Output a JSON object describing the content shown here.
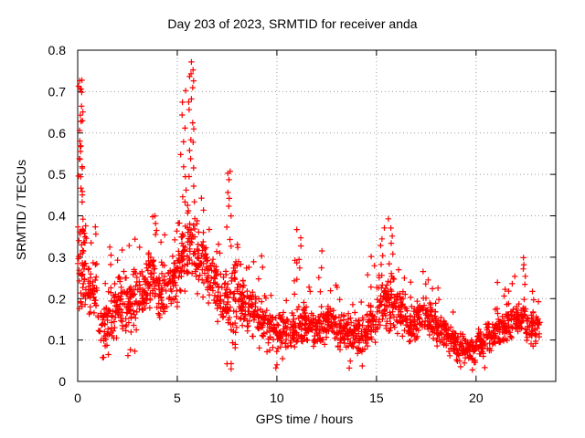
{
  "title": "Day 203 of 2023, SRMTID for receiver anda",
  "colors": {
    "marker": "#ff0000",
    "grid": "#9c9c9c",
    "border": "#000000",
    "background": "#ffffff",
    "text": "#000000"
  },
  "chart_data": {
    "type": "scatter",
    "title": "Day 203 of 2023, SRMTID for receiver anda",
    "xlabel": "GPS time / hours",
    "ylabel": "SRMTID / TECUs",
    "xlim": [
      0,
      24
    ],
    "ylim": [
      0,
      0.8
    ],
    "xticks": [
      0,
      5,
      10,
      15,
      20
    ],
    "xtick_labels": [
      "0",
      "5",
      "10",
      "15",
      "20"
    ],
    "yticks": [
      0,
      0.1,
      0.2,
      0.3,
      0.4,
      0.5,
      0.6,
      0.7,
      0.8
    ],
    "ytick_labels": [
      "0",
      "0.1",
      "0.2",
      "0.3",
      "0.4",
      "0.5",
      "0.6",
      "0.7",
      "0.8"
    ],
    "grid": true,
    "legend": "none",
    "marker": "plus",
    "series_color": "#ff0000",
    "summary": "Dense red plus-marker scatter of SRMTID vs GPS time. Baseline band ~0.05-0.2 TECUs all day; strong activity 0-0.5h (spikes to 0.73), 5-6h (max 0.77), 7.5h (to 0.51), 11h and 12h (to ~0.37 and ~0.31), 15-16h (to ~0.39), quiet minimum near 19-20h (~0.03-0.1), final spike ~0.30 near 22.5h; data ends ~23.2h.",
    "seed": 7,
    "bin_format": "x=bin start hour, w=bin width hours, n=core point count, lo/hi=core TECU band, extra=individual outlier TECU values, col=[xCenter,xHalfWidth] clustering for outliers",
    "density_bins": [
      {
        "x": 0.0,
        "w": 0.45,
        "n": 50,
        "lo": 0.16,
        "hi": 0.4,
        "extra": [
          0.43,
          0.45,
          0.46,
          0.47,
          0.49,
          0.5,
          0.51,
          0.52,
          0.53,
          0.54,
          0.55,
          0.56,
          0.57,
          0.58,
          0.6,
          0.62,
          0.63,
          0.64,
          0.65,
          0.67,
          0.7,
          0.7,
          0.71,
          0.71,
          0.72,
          0.73
        ],
        "col": [
          0.15,
          0.13
        ]
      },
      {
        "x": 0.5,
        "w": 0.5,
        "n": 40,
        "lo": 0.13,
        "hi": 0.3,
        "extra": [
          0.33,
          0.35,
          0.37
        ]
      },
      {
        "x": 1.0,
        "w": 0.5,
        "n": 36,
        "lo": 0.07,
        "hi": 0.21,
        "extra": [
          0.05,
          0.06,
          0.24
        ]
      },
      {
        "x": 1.5,
        "w": 0.5,
        "n": 40,
        "lo": 0.08,
        "hi": 0.24,
        "extra": [
          0.06,
          0.28,
          0.3,
          0.33
        ]
      },
      {
        "x": 2.0,
        "w": 0.5,
        "n": 44,
        "lo": 0.11,
        "hi": 0.27,
        "extra": [
          0.3,
          0.31
        ]
      },
      {
        "x": 2.5,
        "w": 0.5,
        "n": 44,
        "lo": 0.1,
        "hi": 0.29,
        "extra": [
          0.06,
          0.07,
          0.08,
          0.32,
          0.34
        ]
      },
      {
        "x": 3.0,
        "w": 0.5,
        "n": 40,
        "lo": 0.14,
        "hi": 0.29,
        "extra": [
          0.32
        ]
      },
      {
        "x": 3.5,
        "w": 0.5,
        "n": 44,
        "lo": 0.16,
        "hi": 0.32,
        "extra": [
          0.35,
          0.36,
          0.38,
          0.39,
          0.4
        ],
        "col": [
          3.85,
          0.12
        ]
      },
      {
        "x": 4.0,
        "w": 0.5,
        "n": 40,
        "lo": 0.14,
        "hi": 0.31,
        "extra": [
          0.34,
          0.36
        ]
      },
      {
        "x": 4.5,
        "w": 0.5,
        "n": 44,
        "lo": 0.16,
        "hi": 0.33,
        "extra": [
          0.35,
          0.37
        ]
      },
      {
        "x": 5.0,
        "w": 0.5,
        "n": 46,
        "lo": 0.2,
        "hi": 0.4,
        "extra": [
          0.43,
          0.45,
          0.47,
          0.5,
          0.52,
          0.55,
          0.58,
          0.61,
          0.64,
          0.67,
          0.7
        ],
        "col": [
          5.3,
          0.15
        ]
      },
      {
        "x": 5.5,
        "w": 0.5,
        "n": 46,
        "lo": 0.24,
        "hi": 0.45,
        "extra": [
          0.47,
          0.49,
          0.51,
          0.53,
          0.55,
          0.57,
          0.59,
          0.61,
          0.63,
          0.65,
          0.67,
          0.69,
          0.71,
          0.72,
          0.73,
          0.74,
          0.75,
          0.77
        ],
        "col": [
          5.7,
          0.13
        ]
      },
      {
        "x": 6.0,
        "w": 0.5,
        "n": 42,
        "lo": 0.2,
        "hi": 0.4,
        "extra": [
          0.42,
          0.44
        ]
      },
      {
        "x": 6.5,
        "w": 0.5,
        "n": 40,
        "lo": 0.17,
        "hi": 0.34,
        "extra": [
          0.36
        ]
      },
      {
        "x": 7.0,
        "w": 0.5,
        "n": 36,
        "lo": 0.12,
        "hi": 0.28,
        "extra": [
          0.31,
          0.33
        ]
      },
      {
        "x": 7.5,
        "w": 0.5,
        "n": 44,
        "lo": 0.07,
        "hi": 0.3,
        "extra": [
          0.03,
          0.04,
          0.05,
          0.33,
          0.35,
          0.38,
          0.4,
          0.42,
          0.44,
          0.46,
          0.48,
          0.5,
          0.51
        ],
        "col": [
          7.6,
          0.12
        ]
      },
      {
        "x": 8.0,
        "w": 0.5,
        "n": 44,
        "lo": 0.12,
        "hi": 0.3,
        "extra": [
          0.32,
          0.33
        ]
      },
      {
        "x": 8.5,
        "w": 0.5,
        "n": 40,
        "lo": 0.1,
        "hi": 0.24,
        "extra": [
          0.27,
          0.29
        ]
      },
      {
        "x": 9.0,
        "w": 0.5,
        "n": 38,
        "lo": 0.08,
        "hi": 0.22,
        "extra": [
          0.25,
          0.28,
          0.3
        ]
      },
      {
        "x": 9.5,
        "w": 0.5,
        "n": 40,
        "lo": 0.06,
        "hi": 0.18,
        "extra": [
          0.04,
          0.21
        ]
      },
      {
        "x": 10.0,
        "w": 0.5,
        "n": 40,
        "lo": 0.07,
        "hi": 0.17,
        "extra": [
          0.04,
          0.05,
          0.2
        ]
      },
      {
        "x": 10.5,
        "w": 0.5,
        "n": 40,
        "lo": 0.08,
        "hi": 0.18,
        "extra": [
          0.21,
          0.25,
          0.28,
          0.3
        ],
        "col": [
          10.9,
          0.1
        ]
      },
      {
        "x": 11.0,
        "w": 0.5,
        "n": 42,
        "lo": 0.09,
        "hi": 0.2,
        "extra": [
          0.24,
          0.27,
          0.3,
          0.33,
          0.35,
          0.37
        ],
        "col": [
          11.1,
          0.12
        ]
      },
      {
        "x": 11.5,
        "w": 0.5,
        "n": 40,
        "lo": 0.08,
        "hi": 0.18,
        "extra": [
          0.21,
          0.23
        ]
      },
      {
        "x": 12.0,
        "w": 0.5,
        "n": 40,
        "lo": 0.08,
        "hi": 0.19,
        "extra": [
          0.22,
          0.25,
          0.28,
          0.31
        ],
        "col": [
          12.2,
          0.12
        ]
      },
      {
        "x": 12.5,
        "w": 0.5,
        "n": 40,
        "lo": 0.09,
        "hi": 0.19,
        "extra": [
          0.22,
          0.24
        ]
      },
      {
        "x": 13.0,
        "w": 0.5,
        "n": 40,
        "lo": 0.07,
        "hi": 0.17,
        "extra": [
          0.2,
          0.22
        ]
      },
      {
        "x": 13.5,
        "w": 0.5,
        "n": 40,
        "lo": 0.07,
        "hi": 0.17,
        "extra": [
          0.04,
          0.05,
          0.19
        ]
      },
      {
        "x": 14.0,
        "w": 0.5,
        "n": 40,
        "lo": 0.06,
        "hi": 0.16,
        "extra": [
          0.04,
          0.19
        ]
      },
      {
        "x": 14.5,
        "w": 0.5,
        "n": 42,
        "lo": 0.08,
        "hi": 0.2,
        "extra": [
          0.23,
          0.26,
          0.28,
          0.3
        ]
      },
      {
        "x": 15.0,
        "w": 0.5,
        "n": 46,
        "lo": 0.11,
        "hi": 0.27,
        "extra": [
          0.29,
          0.31,
          0.33,
          0.35,
          0.37
        ],
        "col": [
          15.3,
          0.15
        ]
      },
      {
        "x": 15.5,
        "w": 0.5,
        "n": 46,
        "lo": 0.11,
        "hi": 0.27,
        "extra": [
          0.29,
          0.31,
          0.33,
          0.35,
          0.37,
          0.39
        ],
        "col": [
          15.7,
          0.15
        ]
      },
      {
        "x": 16.0,
        "w": 0.5,
        "n": 42,
        "lo": 0.1,
        "hi": 0.23,
        "extra": [
          0.25,
          0.27
        ]
      },
      {
        "x": 16.5,
        "w": 0.5,
        "n": 40,
        "lo": 0.09,
        "hi": 0.19,
        "extra": [
          0.21,
          0.24
        ]
      },
      {
        "x": 17.0,
        "w": 0.5,
        "n": 40,
        "lo": 0.1,
        "hi": 0.21,
        "extra": [
          0.24,
          0.26
        ]
      },
      {
        "x": 17.5,
        "w": 0.5,
        "n": 40,
        "lo": 0.1,
        "hi": 0.21,
        "extra": [
          0.23,
          0.25
        ]
      },
      {
        "x": 18.0,
        "w": 0.5,
        "n": 40,
        "lo": 0.08,
        "hi": 0.17,
        "extra": [
          0.2,
          0.22
        ]
      },
      {
        "x": 18.5,
        "w": 0.5,
        "n": 40,
        "lo": 0.06,
        "hi": 0.14,
        "extra": [
          0.16
        ]
      },
      {
        "x": 19.0,
        "w": 0.5,
        "n": 42,
        "lo": 0.04,
        "hi": 0.12,
        "extra": [
          0.03
        ]
      },
      {
        "x": 19.5,
        "w": 0.5,
        "n": 42,
        "lo": 0.04,
        "hi": 0.11,
        "extra": [
          0.03
        ]
      },
      {
        "x": 20.0,
        "w": 0.5,
        "n": 40,
        "lo": 0.05,
        "hi": 0.13,
        "extra": [
          0.04
        ]
      },
      {
        "x": 20.5,
        "w": 0.5,
        "n": 40,
        "lo": 0.07,
        "hi": 0.15,
        "extra": [
          0.17
        ]
      },
      {
        "x": 21.0,
        "w": 0.5,
        "n": 40,
        "lo": 0.08,
        "hi": 0.18,
        "extra": [
          0.2,
          0.22,
          0.24
        ]
      },
      {
        "x": 21.5,
        "w": 0.5,
        "n": 40,
        "lo": 0.09,
        "hi": 0.2,
        "extra": [
          0.22,
          0.23,
          0.25
        ]
      },
      {
        "x": 22.0,
        "w": 0.5,
        "n": 42,
        "lo": 0.1,
        "hi": 0.21,
        "extra": [
          0.23,
          0.25,
          0.27,
          0.28,
          0.3
        ],
        "col": [
          22.45,
          0.08
        ]
      },
      {
        "x": 22.5,
        "w": 0.5,
        "n": 40,
        "lo": 0.08,
        "hi": 0.18,
        "extra": [
          0.2,
          0.22
        ]
      },
      {
        "x": 23.0,
        "w": 0.2,
        "n": 14,
        "lo": 0.1,
        "hi": 0.18,
        "extra": [
          0.2
        ]
      }
    ]
  }
}
